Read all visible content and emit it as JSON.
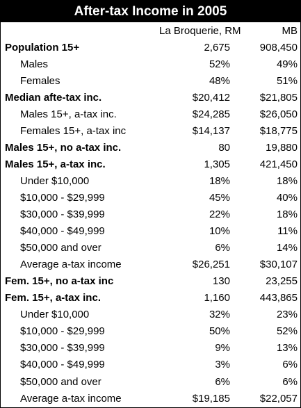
{
  "table": {
    "title": "After-tax Income in 2005",
    "header": [
      "La Broquerie, RM",
      "MB"
    ],
    "rows": [
      {
        "label": "Population 15+",
        "bold": true,
        "values": [
          "2,675",
          "908,450"
        ]
      },
      {
        "label": "Males",
        "values": [
          "52%",
          "49%"
        ]
      },
      {
        "label": "Females",
        "values": [
          "48%",
          "51%"
        ]
      },
      {
        "label": "Median afte-tax  inc.",
        "bold": true,
        "values": [
          "$20,412",
          "$21,805"
        ]
      },
      {
        "label": "Males 15+, a-tax inc.",
        "values": [
          "$24,285",
          "$26,050"
        ]
      },
      {
        "label": "Females 15+, a-tax inc",
        "values": [
          "$14,137",
          "$18,775"
        ]
      },
      {
        "label": "Males 15+, no a-tax inc.",
        "bold": true,
        "values": [
          "80",
          "19,880"
        ]
      },
      {
        "label": "Males 15+, a-tax inc.",
        "bold": true,
        "values": [
          "1,305",
          "421,450"
        ]
      },
      {
        "label": "Under $10,000",
        "values": [
          "18%",
          "18%"
        ]
      },
      {
        "label": "$10,000 - $29,999",
        "values": [
          "45%",
          "40%"
        ]
      },
      {
        "label": "$30,000 - $39,999",
        "values": [
          "22%",
          "18%"
        ]
      },
      {
        "label": "$40,000 - $49,999",
        "values": [
          "10%",
          "11%"
        ]
      },
      {
        "label": "$50,000 and over",
        "values": [
          "6%",
          "14%"
        ]
      },
      {
        "label": "Average a-tax income",
        "values": [
          "$26,251",
          "$30,107"
        ]
      },
      {
        "label": "Fem. 15+, no a-tax inc",
        "bold": true,
        "values": [
          "130",
          "23,255"
        ]
      },
      {
        "label": "Fem. 15+, a-tax inc.",
        "bold": true,
        "values": [
          "1,160",
          "443,865"
        ]
      },
      {
        "label": "Under $10,000",
        "values": [
          "32%",
          "23%"
        ]
      },
      {
        "label": "$10,000 - $29,999",
        "values": [
          "50%",
          "52%"
        ]
      },
      {
        "label": "$30,000 - $39,999",
        "values": [
          "9%",
          "13%"
        ]
      },
      {
        "label": "$40,000 - $49,999",
        "values": [
          "3%",
          "6%"
        ]
      },
      {
        "label": "$50,000 and over",
        "values": [
          "6%",
          "6%"
        ]
      },
      {
        "label": "Average a-tax income",
        "values": [
          "$19,185",
          "$22,057"
        ]
      }
    ]
  }
}
